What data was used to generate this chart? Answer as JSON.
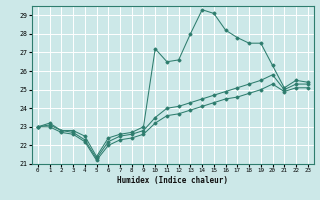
{
  "xlabel": "Humidex (Indice chaleur)",
  "xlim": [
    -0.5,
    23.5
  ],
  "ylim": [
    21,
    29.5
  ],
  "yticks": [
    21,
    22,
    23,
    24,
    25,
    26,
    27,
    28,
    29
  ],
  "xticks": [
    0,
    1,
    2,
    3,
    4,
    5,
    6,
    7,
    8,
    9,
    10,
    11,
    12,
    13,
    14,
    15,
    16,
    17,
    18,
    19,
    20,
    21,
    22,
    23
  ],
  "bg_color": "#cce8e8",
  "grid_color": "#ffffff",
  "line_color": "#2e7d6e",
  "line1_y": [
    23.0,
    23.2,
    22.8,
    22.8,
    22.5,
    21.4,
    22.4,
    22.6,
    22.7,
    23.0,
    27.2,
    26.5,
    26.6,
    28.0,
    29.3,
    29.1,
    28.2,
    27.8,
    27.5,
    27.5,
    26.3,
    25.1,
    25.5,
    25.4
  ],
  "line2_y": [
    23.0,
    23.1,
    22.8,
    22.7,
    22.3,
    21.3,
    22.2,
    22.5,
    22.6,
    22.8,
    23.5,
    24.0,
    24.1,
    24.3,
    24.5,
    24.7,
    24.9,
    25.1,
    25.3,
    25.5,
    25.8,
    25.0,
    25.3,
    25.3
  ],
  "line3_y": [
    23.0,
    23.0,
    22.7,
    22.6,
    22.2,
    21.2,
    22.0,
    22.3,
    22.4,
    22.6,
    23.2,
    23.6,
    23.7,
    23.9,
    24.1,
    24.3,
    24.5,
    24.6,
    24.8,
    25.0,
    25.3,
    24.9,
    25.1,
    25.1
  ]
}
